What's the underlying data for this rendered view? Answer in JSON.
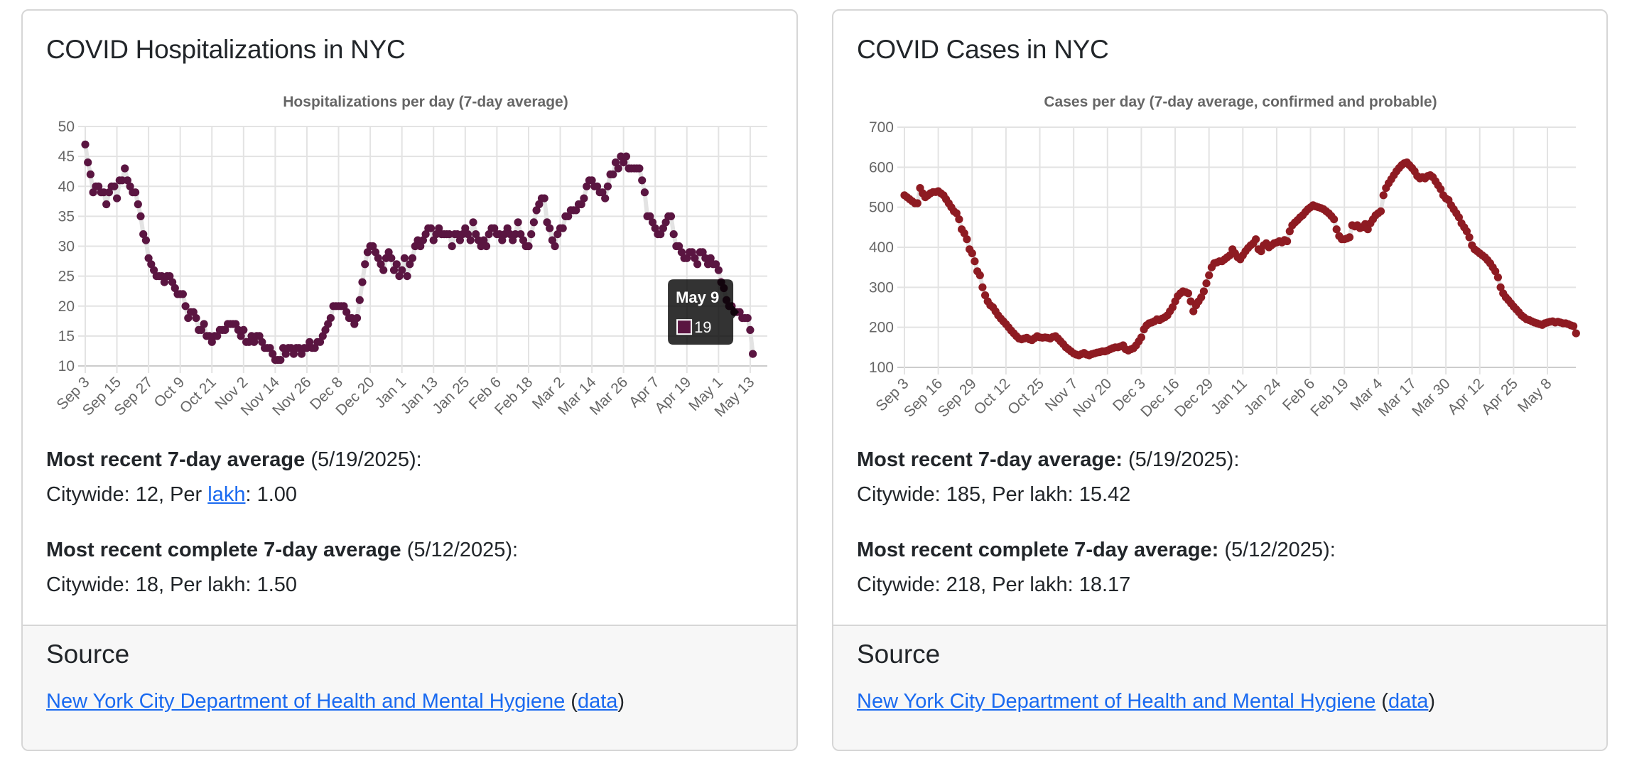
{
  "cards": [
    {
      "title": "COVID Hospitalizations in NYC",
      "recent_label": "Most recent 7-day average",
      "recent_date": " (5/19/2025):",
      "recent_citywide_prefix": "Citywide: 12, Per ",
      "recent_lakh_link": "lakh",
      "recent_suffix": ": 1.00",
      "complete_label": "Most recent complete 7-day average",
      "complete_date": " (5/12/2025):",
      "complete_values": "Citywide: 18, Per lakh: 1.50",
      "source_title": "Source",
      "source_link": "New York City Department of Health and Mental Hygiene",
      "data_open": " (",
      "data_link": "data",
      "data_close": ")"
    },
    {
      "title": "COVID Cases in NYC",
      "recent_label": "Most recent 7-day average:",
      "recent_date": " (5/19/2025):",
      "recent_values": "Citywide: 185, Per lakh: 15.42",
      "complete_label": "Most recent complete 7-day average:",
      "complete_date": " (5/12/2025):",
      "complete_values": "Citywide: 218, Per lakh: 18.17",
      "source_title": "Source",
      "source_link": "New York City Department of Health and Mental Hygiene",
      "data_open": " (",
      "data_link": "data",
      "data_close": ")"
    }
  ],
  "chart_data": [
    {
      "type": "line",
      "title": "Hospitalizations per day (7-day average)",
      "xlabel": "",
      "ylabel": "",
      "x_start": "Sep 3",
      "x_tick_interval_days": 12,
      "x_tick_labels": [
        "Sep 3",
        "Sep 15",
        "Sep 27",
        "Oct 9",
        "Oct 21",
        "Nov 2",
        "Nov 14",
        "Nov 26",
        "Dec 8",
        "Dec 20",
        "Jan 1",
        "Jan 13",
        "Jan 25",
        "Feb 6",
        "Feb 18",
        "Mar 2",
        "Mar 14",
        "Mar 26",
        "Apr 7",
        "Apr 19",
        "May 1",
        "May 13"
      ],
      "ylim": [
        10,
        50
      ],
      "y_ticks": [
        10,
        15,
        20,
        25,
        30,
        35,
        40,
        45,
        50
      ],
      "grid": true,
      "legend": "none",
      "color": "#5a1541",
      "series": [
        {
          "name": "Hospitalizations",
          "values": [
            47,
            44,
            42,
            39,
            40,
            40,
            39,
            39,
            37,
            39,
            40,
            40,
            38,
            41,
            41,
            43,
            41,
            40,
            39,
            39,
            37,
            35,
            32,
            31,
            28,
            27,
            26,
            25,
            25,
            25,
            24,
            25,
            25,
            24,
            23,
            22,
            22,
            22,
            20,
            18,
            19,
            19,
            18,
            16,
            16,
            17,
            15,
            15,
            14,
            15,
            15,
            16,
            16,
            16,
            17,
            17,
            17,
            17,
            16,
            15,
            16,
            14,
            14,
            15,
            14,
            15,
            15,
            14,
            13,
            13,
            13,
            12,
            11,
            11,
            11,
            13,
            12,
            13,
            13,
            12,
            13,
            13,
            12,
            13,
            13,
            14,
            13,
            13,
            14,
            14,
            15,
            16,
            17,
            18,
            20,
            20,
            20,
            20,
            20,
            19,
            18,
            18,
            17,
            18,
            21,
            24,
            27,
            29,
            30,
            30,
            29,
            28,
            27,
            26,
            28,
            29,
            28,
            26,
            27,
            25,
            26,
            28,
            25,
            27,
            28,
            30,
            31,
            30,
            31,
            32,
            33,
            33,
            31,
            32,
            33,
            32,
            32,
            32,
            32,
            30,
            32,
            32,
            31,
            32,
            33,
            32,
            31,
            34,
            32,
            31,
            30,
            31,
            30,
            32,
            33,
            33,
            32,
            32,
            31,
            32,
            33,
            32,
            31,
            32,
            34,
            32,
            31,
            30,
            30,
            32,
            34,
            36,
            37,
            38,
            38,
            34,
            33,
            31,
            30,
            32,
            33,
            33,
            35,
            35,
            36,
            36,
            36,
            37,
            37,
            38,
            40,
            41,
            41,
            40,
            40,
            39,
            39,
            38,
            40,
            42,
            42,
            44,
            43,
            45,
            44,
            45,
            43,
            43,
            43,
            43,
            43,
            41,
            39,
            35,
            35,
            34,
            33,
            32,
            32,
            33,
            34,
            35,
            35,
            32,
            30,
            30,
            29,
            28,
            28,
            29,
            29,
            28,
            27,
            29,
            29,
            28,
            27,
            28,
            27,
            27,
            26,
            24,
            23,
            21,
            20,
            20,
            19,
            19,
            19,
            18,
            18,
            18,
            16,
            12
          ]
        }
      ],
      "tooltip": {
        "title": "May 9",
        "value": "19",
        "day_index": 248
      }
    },
    {
      "type": "line",
      "title": "Cases per day (7-day average, confirmed and probable)",
      "xlabel": "",
      "ylabel": "",
      "x_start": "Sep 3",
      "x_tick_interval_days": 13,
      "x_tick_labels": [
        "Sep 3",
        "Sep 16",
        "Sep 29",
        "Oct 12",
        "Oct 25",
        "Nov 7",
        "Nov 20",
        "Dec 3",
        "Dec 16",
        "Dec 29",
        "Jan 11",
        "Jan 24",
        "Feb 6",
        "Feb 19",
        "Mar 4",
        "Mar 17",
        "Mar 30",
        "Apr 12",
        "Apr 25",
        "May 8"
      ],
      "ylim": [
        100,
        700
      ],
      "y_ticks": [
        100,
        200,
        300,
        400,
        500,
        600,
        700
      ],
      "grid": true,
      "legend": "none",
      "color": "#8e1b22",
      "series": [
        {
          "name": "Cases",
          "values": [
            530,
            525,
            520,
            515,
            510,
            510,
            548,
            535,
            525,
            530,
            535,
            538,
            538,
            540,
            535,
            530,
            520,
            510,
            500,
            490,
            485,
            470,
            445,
            435,
            420,
            395,
            385,
            365,
            340,
            330,
            300,
            280,
            265,
            255,
            250,
            240,
            230,
            222,
            215,
            208,
            200,
            192,
            185,
            178,
            172,
            170,
            172,
            174,
            170,
            168,
            173,
            178,
            175,
            174,
            175,
            174,
            172,
            176,
            178,
            172,
            165,
            158,
            150,
            145,
            140,
            135,
            132,
            130,
            133,
            136,
            132,
            130,
            133,
            135,
            137,
            138,
            140,
            140,
            142,
            145,
            148,
            150,
            150,
            152,
            155,
            145,
            142,
            145,
            148,
            155,
            165,
            175,
            195,
            205,
            210,
            212,
            215,
            220,
            218,
            222,
            225,
            230,
            240,
            250,
            265,
            278,
            285,
            290,
            288,
            285,
            265,
            240,
            255,
            265,
            275,
            290,
            310,
            330,
            350,
            360,
            362,
            365,
            365,
            370,
            375,
            380,
            395,
            385,
            375,
            370,
            380,
            390,
            398,
            405,
            410,
            420,
            395,
            390,
            405,
            410,
            400,
            405,
            410,
            412,
            415,
            412,
            418,
            415,
            440,
            455,
            462,
            468,
            475,
            480,
            488,
            495,
            500,
            505,
            502,
            500,
            498,
            495,
            490,
            485,
            478,
            470,
            445,
            428,
            420,
            420,
            422,
            425,
            455,
            452,
            455,
            448,
            450,
            458,
            445,
            460,
            470,
            480,
            485,
            490,
            530,
            548,
            560,
            570,
            580,
            590,
            598,
            605,
            610,
            612,
            605,
            598,
            590,
            578,
            572,
            575,
            572,
            578,
            580,
            575,
            565,
            555,
            545,
            530,
            522,
            518,
            505,
            495,
            485,
            475,
            460,
            450,
            440,
            425,
            405,
            395,
            390,
            385,
            380,
            375,
            368,
            360,
            350,
            340,
            325,
            300,
            285,
            275,
            268,
            260,
            252,
            245,
            238,
            230,
            225,
            220,
            218,
            215,
            212,
            210,
            208,
            206,
            210,
            212,
            214,
            215,
            212,
            214,
            212,
            210,
            210,
            208,
            205,
            203,
            185
          ]
        }
      ]
    }
  ]
}
